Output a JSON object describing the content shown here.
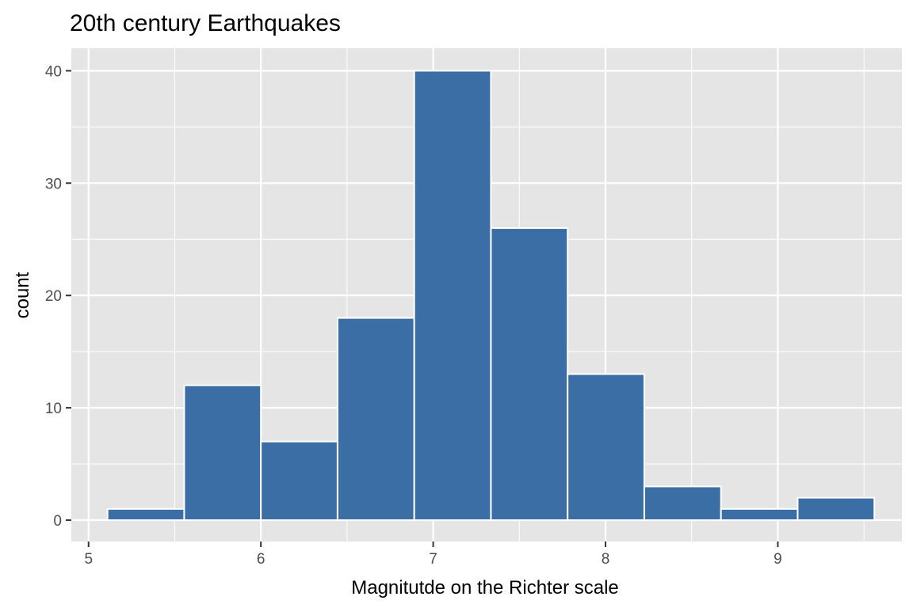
{
  "chart_data": {
    "type": "bar",
    "title": "20th century Earthquakes",
    "xlabel": "Magnitutde on the Richter scale",
    "ylabel": "count",
    "xlim": [
      4.9,
      9.72
    ],
    "ylim": [
      -1.9,
      42.0
    ],
    "x_ticks": [
      "5",
      "6",
      "7",
      "8",
      "9"
    ],
    "y_ticks": [
      "0",
      "10",
      "20",
      "30",
      "40"
    ],
    "bins": [
      {
        "x0": 5.11,
        "x1": 5.555,
        "count": 1
      },
      {
        "x0": 5.555,
        "x1": 6.0,
        "count": 12
      },
      {
        "x0": 6.0,
        "x1": 6.445,
        "count": 7
      },
      {
        "x0": 6.445,
        "x1": 6.89,
        "count": 18
      },
      {
        "x0": 6.89,
        "x1": 7.335,
        "count": 40
      },
      {
        "x0": 7.335,
        "x1": 7.78,
        "count": 26
      },
      {
        "x0": 7.78,
        "x1": 8.225,
        "count": 13
      },
      {
        "x0": 8.225,
        "x1": 8.67,
        "count": 3
      },
      {
        "x0": 8.67,
        "x1": 9.115,
        "count": 1
      },
      {
        "x0": 9.115,
        "x1": 9.56,
        "count": 2
      }
    ],
    "grid": true,
    "colors": {
      "fill": "#3a6ea5",
      "bar_outline": "#ffffff",
      "panel_background": "#e5e5e5",
      "grid": "#ffffff"
    }
  }
}
